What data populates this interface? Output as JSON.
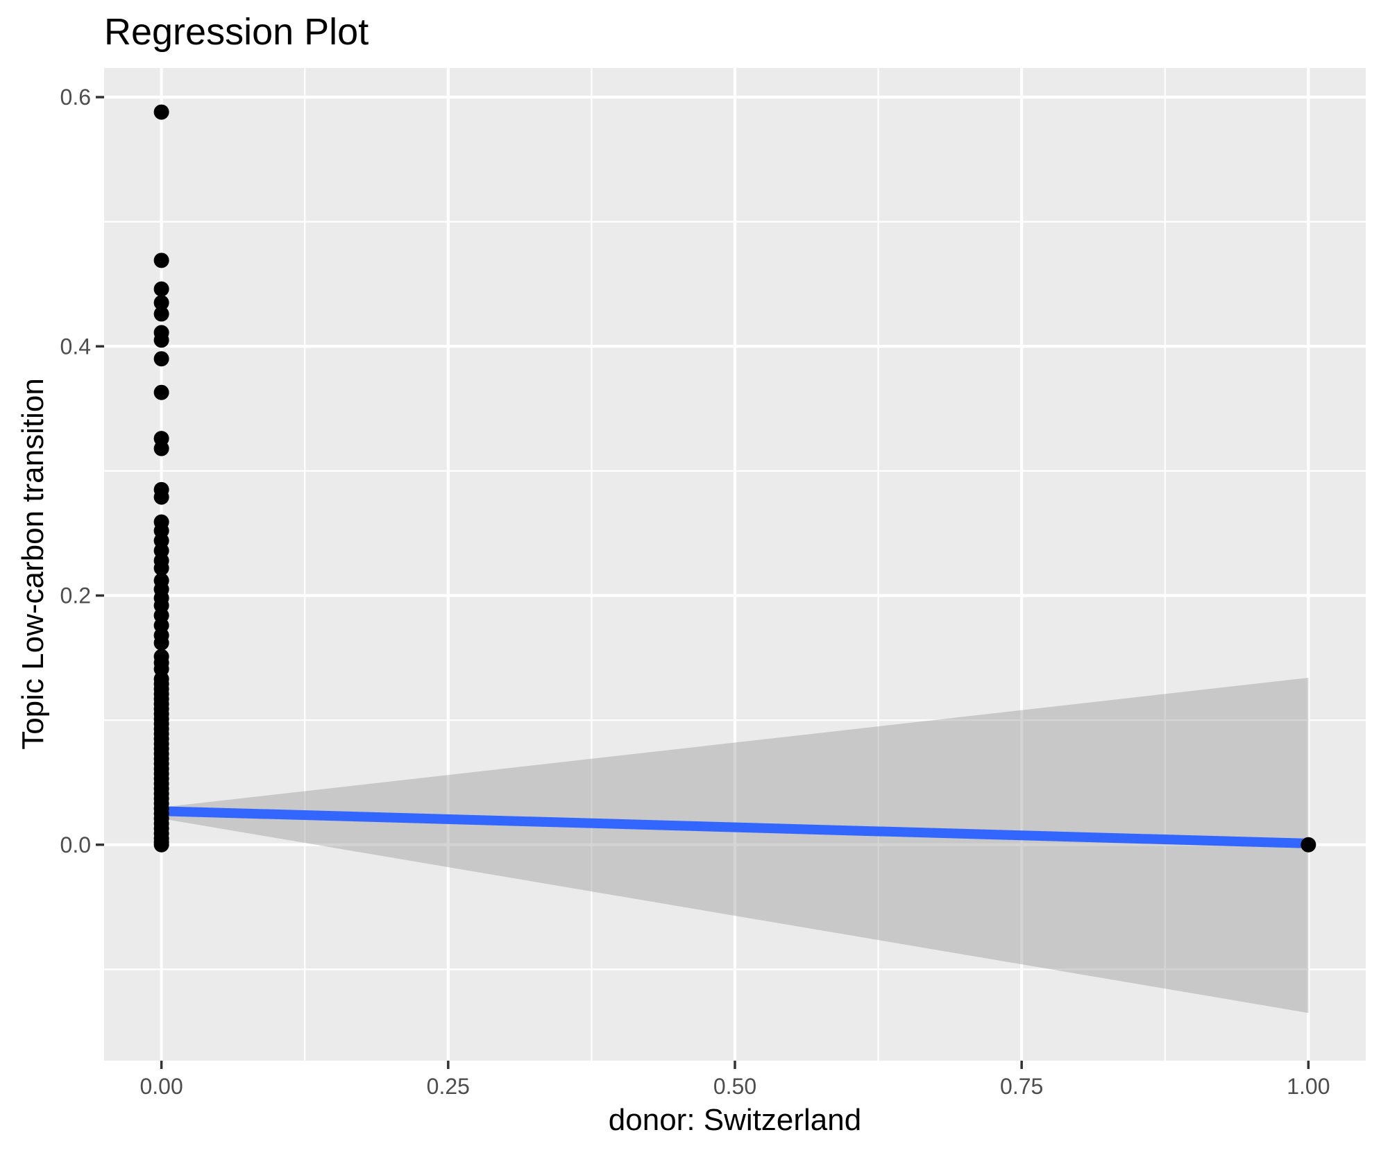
{
  "colors": {
    "page_background": "#FFFFFF",
    "panel_background": "#EBEBEB",
    "gridline": "#FFFFFF",
    "ribbon_fill": "#999999",
    "ribbon_opacity": 0.42,
    "regression_line": "#3366FF",
    "point_fill": "#000000",
    "tick_mark": "#333333",
    "tick_label_text": "#4D4D4D",
    "title_text": "#000000"
  },
  "chart_data": {
    "type": "scatter",
    "title": "Regression Plot",
    "xlabel": "donor: Switzerland",
    "ylabel": "Topic Low-carbon transition",
    "legend": "none",
    "grid": true,
    "xlim": [
      -0.05,
      1.05
    ],
    "ylim": [
      -0.1733,
      0.6234
    ],
    "x_tick_values": [
      0.0,
      0.25,
      0.5,
      0.75,
      1.0
    ],
    "x_tick_labels": [
      "0.00",
      "0.25",
      "0.50",
      "0.75",
      "1.00"
    ],
    "y_tick_values": [
      0.6,
      0.4,
      0.2,
      0.0
    ],
    "y_tick_labels": [
      "0.6",
      "0.4",
      "0.2",
      "0.0"
    ],
    "x_minor_tick_values": [
      0.125,
      0.375,
      0.625,
      0.875
    ],
    "y_minor_tick_values": [
      0.5,
      0.3,
      0.1,
      -0.1
    ],
    "points": [
      [
        0,
        0.588
      ],
      [
        0,
        0.469
      ],
      [
        0,
        0.446
      ],
      [
        0,
        0.435
      ],
      [
        0,
        0.426
      ],
      [
        0,
        0.411
      ],
      [
        0,
        0.405
      ],
      [
        0,
        0.39
      ],
      [
        0,
        0.363
      ],
      [
        0,
        0.326
      ],
      [
        0,
        0.318
      ],
      [
        0,
        0.285
      ],
      [
        0,
        0.279
      ],
      [
        0,
        0.259
      ],
      [
        0,
        0.252
      ],
      [
        0,
        0.244
      ],
      [
        0,
        0.236
      ],
      [
        0,
        0.228
      ],
      [
        0,
        0.222
      ],
      [
        0,
        0.212
      ],
      [
        0,
        0.205
      ],
      [
        0,
        0.198
      ],
      [
        0,
        0.192
      ],
      [
        0,
        0.184
      ],
      [
        0,
        0.176
      ],
      [
        0,
        0.168
      ],
      [
        0,
        0.162
      ],
      [
        0,
        0.151
      ],
      [
        0,
        0.146
      ],
      [
        0,
        0.141
      ],
      [
        0,
        0.133
      ],
      [
        0,
        0.129
      ],
      [
        0,
        0.125
      ],
      [
        0,
        0.121
      ],
      [
        0,
        0.117
      ],
      [
        0,
        0.113
      ],
      [
        0,
        0.109
      ],
      [
        0,
        0.105
      ],
      [
        0,
        0.101
      ],
      [
        0,
        0.097
      ],
      [
        0,
        0.093
      ],
      [
        0,
        0.089
      ],
      [
        0,
        0.085
      ],
      [
        0,
        0.081
      ],
      [
        0,
        0.077
      ],
      [
        0,
        0.073
      ],
      [
        0,
        0.069
      ],
      [
        0,
        0.065
      ],
      [
        0,
        0.061
      ],
      [
        0,
        0.057
      ],
      [
        0,
        0.053
      ],
      [
        0,
        0.049
      ],
      [
        0,
        0.045
      ],
      [
        0,
        0.041
      ],
      [
        0,
        0.037
      ],
      [
        0,
        0.033
      ],
      [
        0,
        0.029
      ],
      [
        0,
        0.025
      ],
      [
        0,
        0.021
      ],
      [
        0,
        0.017
      ],
      [
        0,
        0.013
      ],
      [
        0,
        0.009
      ],
      [
        0,
        0.005
      ],
      [
        0,
        0.002
      ],
      [
        0,
        0.0
      ],
      [
        1,
        0.0
      ]
    ],
    "regression_line": {
      "x": [
        0,
        1
      ],
      "y": [
        0.027,
        0.001
      ]
    },
    "ci_ribbon": {
      "x": [
        0,
        1
      ],
      "upper": [
        0.03,
        0.134
      ],
      "lower": [
        0.021,
        -0.135
      ]
    }
  }
}
